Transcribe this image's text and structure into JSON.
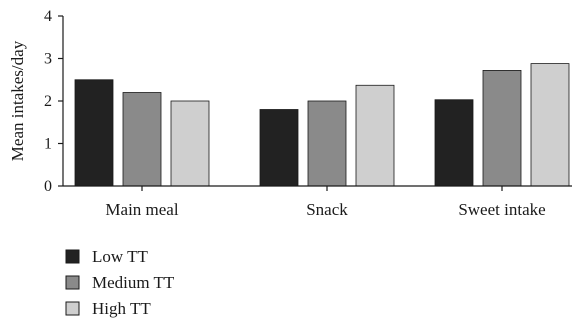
{
  "chart_data": {
    "type": "bar",
    "categories": [
      "Main meal",
      "Snack",
      "Sweet intake"
    ],
    "series": [
      {
        "name": "Low TT",
        "values": [
          2.5,
          1.8,
          2.03
        ],
        "color": "#222222"
      },
      {
        "name": "Medium TT",
        "values": [
          2.2,
          2.0,
          2.72
        ],
        "color": "#8a8a8a"
      },
      {
        "name": "High TT",
        "values": [
          2.0,
          2.37,
          2.88
        ],
        "color": "#cfcfcf"
      }
    ],
    "ylabel": "Mean intakes/day",
    "ylim": [
      0,
      4
    ],
    "yticks": [
      "0",
      "1",
      "2",
      "3",
      "4"
    ],
    "grid": false,
    "legend_position": "bottom-left"
  }
}
